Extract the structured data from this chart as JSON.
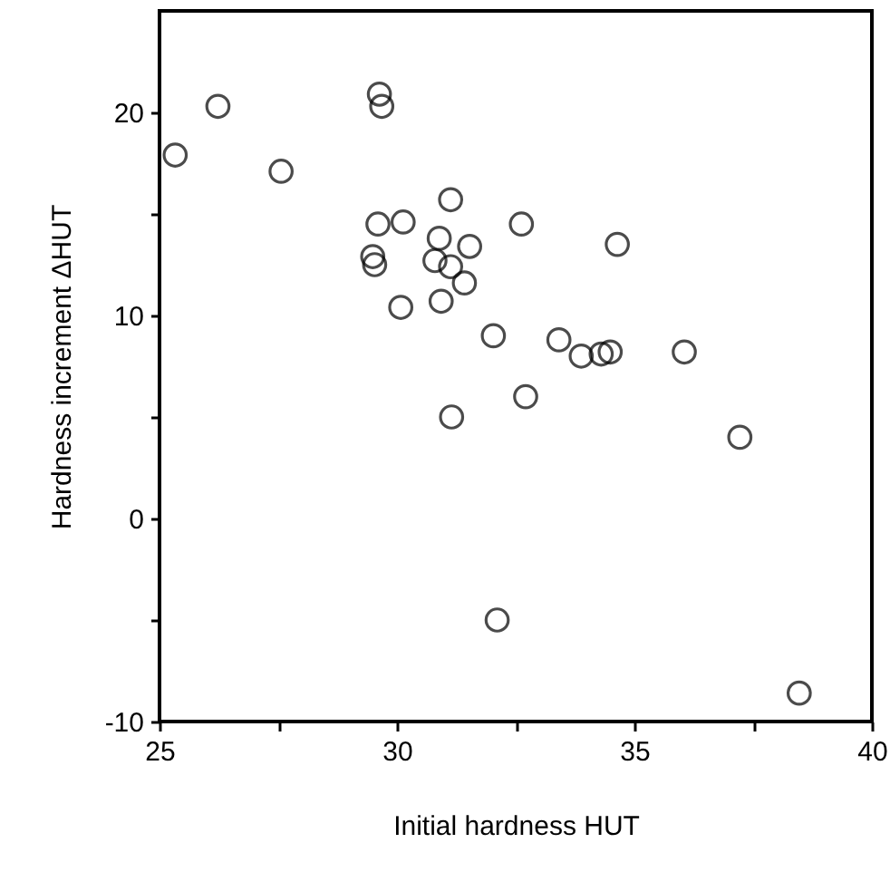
{
  "chart_data": {
    "type": "scatter",
    "xlabel": "Initial hardness HUT",
    "ylabel": "Hardness increment ΔHUT",
    "x": [
      25.33,
      26.23,
      27.56,
      29.63,
      29.68,
      29.6,
      30.13,
      31.13,
      29.49,
      29.53,
      30.89,
      31.53,
      30.8,
      31.13,
      31.42,
      30.08,
      30.93,
      32.03,
      31.15,
      32.62,
      34.64,
      33.41,
      33.88,
      34.3,
      34.49,
      36.05,
      32.71,
      37.22,
      32.11,
      38.47
    ],
    "values": [
      17.9,
      20.3,
      17.1,
      20.9,
      20.3,
      14.5,
      14.6,
      15.7,
      12.9,
      12.5,
      13.8,
      13.4,
      12.7,
      12.4,
      11.6,
      10.4,
      10.7,
      9.0,
      5.0,
      14.5,
      13.5,
      8.8,
      8.0,
      8.1,
      8.2,
      8.2,
      6.0,
      4.0,
      -5.0,
      -8.6
    ],
    "color": "#000000",
    "marker": "circle",
    "xlim": [
      25,
      40
    ],
    "xticks": [
      25,
      {
        "value": 27.5,
        "label": null
      },
      30,
      {
        "value": 32.5,
        "label": null
      },
      35,
      {
        "value": 37.5,
        "label": null
      },
      40
    ],
    "ylim": [
      -10,
      25
    ],
    "yticks": [
      -10,
      {
        "value": -5,
        "label": null
      },
      0,
      {
        "value": 5,
        "label": null
      },
      10,
      {
        "value": 15,
        "label": null
      },
      20
    ],
    "grid": false
  }
}
